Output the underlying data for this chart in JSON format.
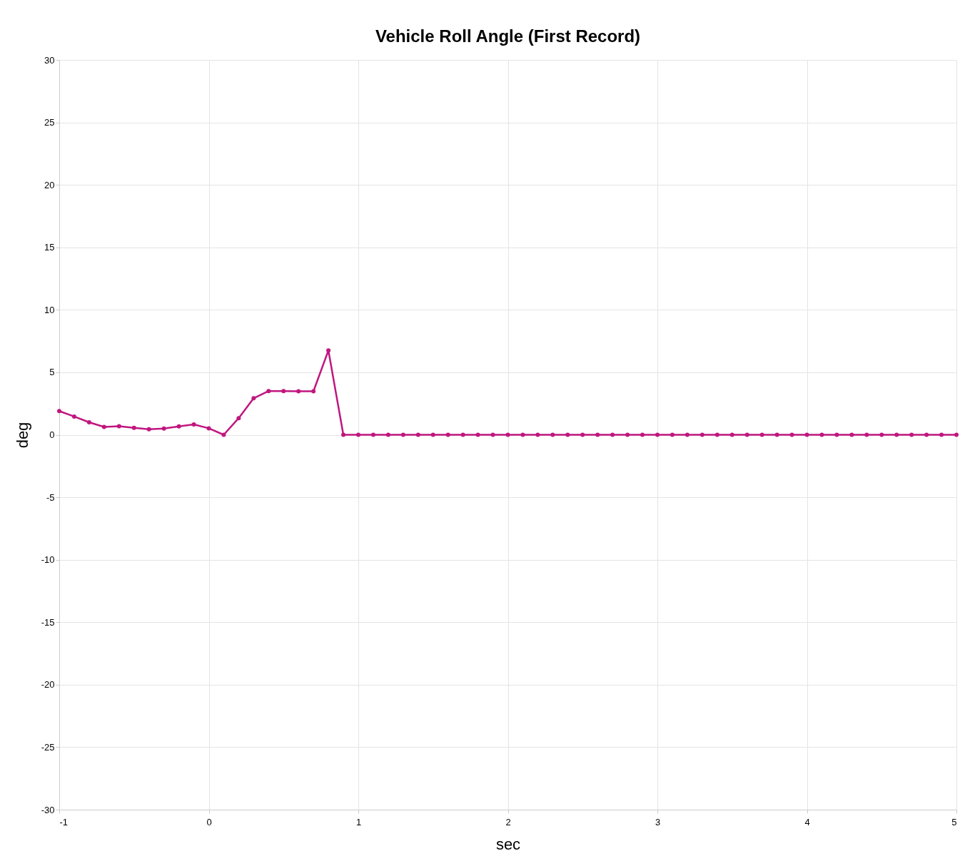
{
  "chart_data": {
    "type": "line",
    "title": "Vehicle Roll Angle (First Record)",
    "xlabel": "sec",
    "ylabel": "deg",
    "x": [
      -1,
      -0.9,
      -0.8,
      -0.7,
      -0.6,
      -0.5,
      -0.4,
      -0.3,
      -0.2,
      -0.1,
      0,
      0.1,
      0.2,
      0.3,
      0.4,
      0.5,
      0.6,
      0.7,
      0.8,
      0.9,
      1,
      1.1,
      1.2,
      1.3,
      1.4,
      1.5,
      1.6,
      1.7,
      1.8,
      1.9,
      2,
      2.1,
      2.2,
      2.3,
      2.4,
      2.5,
      2.6,
      2.7,
      2.8,
      2.9,
      3,
      3.1,
      3.2,
      3.3,
      3.4,
      3.5,
      3.6,
      3.7,
      3.8,
      3.9,
      4,
      4.1,
      4.2,
      4.3,
      4.4,
      4.5,
      4.6,
      4.7,
      4.8,
      4.9,
      5
    ],
    "series": [
      {
        "color": "#c0177f",
        "values": [
          1.9,
          1.46,
          1.0,
          0.63,
          0.69,
          0.56,
          0.44,
          0.5,
          0.67,
          0.83,
          0.52,
          0,
          1.33,
          2.92,
          3.5,
          3.5,
          3.48,
          3.48,
          6.75,
          0,
          0,
          0,
          0,
          0,
          0,
          0,
          0,
          0,
          0,
          0,
          0,
          0,
          0,
          0,
          0,
          0,
          0,
          0,
          0,
          0,
          0,
          0,
          0,
          0,
          0,
          0,
          0,
          0,
          0,
          0,
          0,
          0,
          0,
          0,
          0,
          0,
          0,
          0,
          0,
          0,
          0
        ]
      }
    ],
    "xlim": [
      -1,
      5
    ],
    "xticks": [
      -1,
      0,
      1,
      2,
      3,
      4,
      5
    ],
    "ylim": [
      -30,
      30
    ],
    "yticks": [
      -30,
      -25,
      -20,
      -15,
      -10,
      -5,
      0,
      5,
      10,
      15,
      20,
      25,
      30
    ],
    "grid": true,
    "marker": "circle",
    "line_style": "solid"
  }
}
